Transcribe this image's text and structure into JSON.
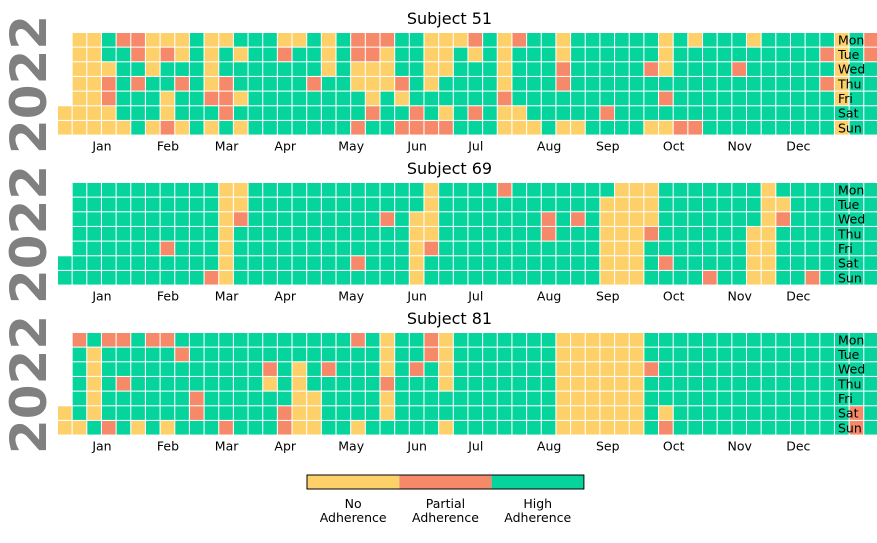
{
  "chart_data": {
    "type": "heatmap",
    "year_label": "2022",
    "weekday_labels": [
      "Mon",
      "Tue",
      "Wed",
      "Thu",
      "Fri",
      "Sat",
      "Sun"
    ],
    "month_labels": [
      "Jan",
      "Feb",
      "Mar",
      "Apr",
      "May",
      "Jun",
      "Jul",
      "Aug",
      "Sep",
      "Oct",
      "Nov",
      "Dec"
    ],
    "categories": [
      "No Adherence",
      "Partial Adherence",
      "High Adherence"
    ],
    "colors": {
      "no": "#fdd06a",
      "partial": "#f6896a",
      "high": "#05d49c",
      "year_text": "#808080"
    },
    "legend": [
      {
        "key": "no",
        "label_line1": "No",
        "label_line2": "Adherence"
      },
      {
        "key": "partial",
        "label_line1": "Partial",
        "label_line2": "Adherence"
      },
      {
        "key": "high",
        "label_line1": "High",
        "label_line2": "Adherence"
      }
    ],
    "value_codes": {
      "N": "no",
      "P": "partial",
      "H": "high"
    },
    "subjects": [
      {
        "title": "Subject 51",
        "weeks": [
          "xxxxxNN",
          "NNNNNNN",
          "NNNNNNN",
          "HHNPPNN",
          "PHHHHHN",
          "PPHPHHH",
          "NNNHHHN",
          "NPHHNNP",
          "NNHPHHN",
          "HHHHHHH",
          "NNNNPHN",
          "NHHPPPH",
          "HNHHNHN",
          "HHHHHHH",
          "HHHHHHH",
          "NPHHHHH",
          "NHHHHHH",
          "HHHPHHH",
          "NNNHHHH",
          "HHHHHHH",
          "PPNNHHP",
          "PPNNNPH",
          "PNNNHHH",
          "HHHPNHP",
          "HHHHHPP",
          "NNNNHHP",
          "NNNHHNP",
          "NHHHHHH",
          "PNHHHPH",
          "HHHHHHH",
          "NNNNPNN",
          "PHHHHNN",
          "HHHHHHN",
          "HHHHHHH",
          "NNPPHHN",
          "HHHHHHN",
          "HHHHHHH",
          "HHHHHPH",
          "HHHHHHH",
          "HHHHHHH",
          "HHPHHHN",
          "NNNHPHN",
          "HHHHHHP",
          "NHHHHHP",
          "HHHHHHH",
          "HHHHHHH",
          "HHPHHHH",
          "NHHHHHH",
          "HHHHHHH",
          "HHHHHHH",
          "HHHHHHH",
          "HHHHHHH",
          "HPHPHHH",
          "NNNNNHN",
          "HHHHHHH",
          "PPHHHHH",
          "HHHHHHH",
          "HHPNNPH",
          "HHHHHHH"
        ]
      },
      {
        "title": "Subject 69",
        "weeks": [
          "xxxxxHH",
          "HHHHHHH",
          "HHHHHHH",
          "HHHHHHH",
          "HHHHHHH",
          "HHHHHHH",
          "HHHHHHH",
          "HHHHPHH",
          "HHHHHHH",
          "HHHHHHH",
          "HHHHHHP",
          "NNNNNNN",
          "NNPHHHH",
          "HHHHHHH",
          "HHHHHHH",
          "HHHHHHH",
          "HHHHHHH",
          "HHHHHHH",
          "HHHHHHH",
          "HHHHHHH",
          "HHHHHPH",
          "HHHHHHH",
          "HHPHHHH",
          "HHHHHHH",
          "HHNNNNN",
          "NNNNPHH",
          "HHHHHHH",
          "HHHHHHH",
          "HHHHHHH",
          "HHHHHHH",
          "PHHHHHH",
          "HHHHHHH",
          "HHHHHHH",
          "HHPPHHH",
          "HHHHHHH",
          "HHPHHHH",
          "HHHHHHH",
          "HNNNNNN",
          "NNNNNNN",
          "NNNNNNN",
          "NNNPHHH",
          "HHHHHPH",
          "HHHHHHH",
          "HHHHHHH",
          "HHHHHHP",
          "HHHHHHH",
          "HHHHHHH",
          "HHHNNNN",
          "NNNNNNN",
          "HNPHHHH",
          "HHHHHHH",
          "HHHHHHP",
          "HHHHHHH",
          "HHHHHHH",
          "HHHHHHH",
          "HHHHHHH",
          "HHHHHHH",
          "HHHHHHH",
          "HHHHPHH"
        ]
      },
      {
        "title": "Subject 81",
        "weeks": [
          "xxxxxNN",
          "PHHHHHN",
          "HNNNNNH",
          "PHHHHHP",
          "PHHPHHH",
          "HHHHHHN",
          "PHHHHHH",
          "PHHHHHN",
          "HPHHHHH",
          "HHHHPPH",
          "HHHHHHH",
          "HHHHHHP",
          "HHHHHHH",
          "HHHHHHH",
          "HHPNHHH",
          "HHHHHPP",
          "HHNNNNN",
          "HHHHNNN",
          "HHPHHHH",
          "HHHHHHH",
          "PHHHHHN",
          "HHHHHHH",
          "NNNPNNH",
          "HHHHHHH",
          "HHPHHHH",
          "PPHHHHH",
          "NNNNHHN",
          "HHHHHHH",
          "HHHHHHH",
          "HHHHHHH",
          "HHHHHHH",
          "HHHHHHH",
          "HHHHHHH",
          "HHHHHHH",
          "NNNNNNN",
          "NNNNNNN",
          "NNNNNNN",
          "NNNNNNN",
          "NNNNNNN",
          "NNNNNNN",
          "HHPHHHH",
          "HHHHHNP",
          "HHHHHHH",
          "HHHHHHH",
          "HHHHHHH",
          "HHHHHHH",
          "HHHHHHH",
          "HHHHHHH",
          "HHHHHHH",
          "HHHHHHH",
          "HHHHHHH",
          "HHHHHHH",
          "HHHHHHH",
          "HHHHHHH",
          "HHHHHPP",
          "HHHHHHH",
          "HHHHHHH",
          "HHHHHHH",
          "HHHHHHH"
        ]
      }
    ]
  }
}
